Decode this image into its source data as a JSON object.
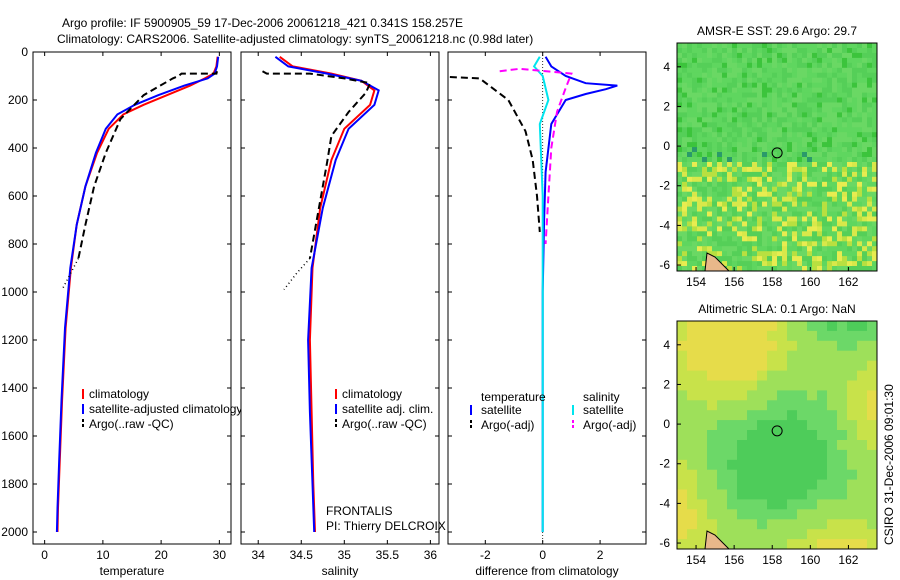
{
  "header": {
    "line1": "Argo profile: IF 5900905_59 17-Dec-2006 20061218_421 0.341S 158.257E",
    "line2": "Climatology: CARS2006. Satellite-adjusted climatology: synTS_20061218.nc (0.98d later)"
  },
  "sidebar_stamp": "CSIRO 31-Dec-2006 09:01:30",
  "colors": {
    "climatology": "#ff0000",
    "satellite": "#0000ff",
    "argo": "#000000",
    "salinity_satellite": "#00e5ee",
    "salinity_argo": "#ff00ff",
    "map_green": "#5fd65f",
    "map_yellow": "#d8e84a"
  },
  "chart_data": [
    {
      "id": "temperature",
      "type": "line",
      "xlabel": "temperature",
      "ylabel": "",
      "xlim": [
        -2,
        32
      ],
      "ylim": [
        2050,
        0
      ],
      "xticks": [
        0,
        10,
        20,
        30
      ],
      "yticks": [
        0,
        200,
        400,
        600,
        800,
        1000,
        1200,
        1400,
        1600,
        1800,
        2000
      ],
      "series": [
        {
          "name": "climatology",
          "color": "#ff0000",
          "dash": "",
          "x": [
            29.7,
            29.5,
            29.0,
            27.5,
            25.0,
            21.0,
            17.0,
            13.5,
            11.0,
            9.0,
            7.0,
            5.5,
            4.5,
            3.6,
            3.0,
            2.6,
            2.3,
            2.2
          ],
          "y": [
            20,
            60,
            90,
            110,
            140,
            180,
            220,
            260,
            320,
            420,
            560,
            720,
            900,
            1150,
            1450,
            1700,
            1900,
            2000
          ]
        },
        {
          "name": "satellite-adjusted climatology",
          "color": "#0000ff",
          "dash": "",
          "x": [
            29.8,
            29.6,
            29.2,
            28.0,
            24.0,
            19.5,
            15.5,
            12.5,
            10.5,
            8.8,
            7.0,
            5.5,
            4.4,
            3.5,
            2.9,
            2.5,
            2.2,
            2.1
          ],
          "y": [
            20,
            60,
            90,
            110,
            140,
            180,
            220,
            260,
            320,
            420,
            560,
            720,
            900,
            1150,
            1450,
            1700,
            1900,
            2000
          ]
        },
        {
          "name": "Argo(..raw -QC)",
          "color": "#000000",
          "dash": "7,4",
          "x": [
            29.6,
            29.5,
            23.5,
            23.0,
            22.0,
            17.0,
            13.0,
            10.5,
            8.5,
            7.0,
            5.8
          ],
          "y": [
            80,
            90,
            90,
            100,
            110,
            180,
            280,
            420,
            560,
            720,
            860
          ]
        },
        {
          "name": "Argo (continued)",
          "color": "#000000",
          "dash": "1,3",
          "x": [
            5.8,
            4.5,
            3.0
          ],
          "y": [
            860,
            920,
            990
          ]
        }
      ],
      "legend": [
        "climatology",
        "satellite-adjusted climatology",
        "Argo(..raw -QC)"
      ]
    },
    {
      "id": "salinity",
      "type": "line",
      "xlabel": "salinity",
      "ylabel": "",
      "xlim": [
        33.8,
        36.1
      ],
      "ylim": [
        2050,
        0
      ],
      "xticks": [
        34,
        34.5,
        35,
        35.5,
        36
      ],
      "xtick_labels": [
        "34",
        "34.5",
        "35",
        "35.5",
        "36"
      ],
      "series": [
        {
          "name": "climatology",
          "color": "#ff0000",
          "dash": "",
          "x": [
            34.25,
            34.4,
            34.85,
            35.2,
            35.35,
            35.3,
            35.0,
            34.85,
            34.72,
            34.63,
            34.6,
            34.62,
            34.64,
            34.66
          ],
          "y": [
            20,
            60,
            90,
            120,
            160,
            220,
            320,
            450,
            650,
            900,
            1200,
            1500,
            1800,
            2000
          ]
        },
        {
          "name": "satellite adj. clim.",
          "color": "#0000ff",
          "dash": "",
          "x": [
            34.2,
            34.35,
            34.8,
            35.2,
            35.4,
            35.35,
            35.05,
            34.9,
            34.75,
            34.62,
            34.58,
            34.6,
            34.63,
            34.65
          ],
          "y": [
            20,
            60,
            90,
            120,
            160,
            220,
            320,
            450,
            650,
            900,
            1200,
            1500,
            1800,
            2000
          ]
        },
        {
          "name": "Argo(..raw -QC)",
          "color": "#000000",
          "dash": "7,4",
          "x": [
            34.05,
            34.1,
            34.6,
            35.0,
            35.3,
            35.25,
            35.05,
            34.85,
            34.8,
            34.72,
            34.6
          ],
          "y": [
            80,
            90,
            90,
            110,
            130,
            170,
            250,
            350,
            460,
            620,
            860
          ]
        },
        {
          "name": "Argo (continued)",
          "color": "#000000",
          "dash": "1,3",
          "x": [
            34.6,
            34.45,
            34.3
          ],
          "y": [
            860,
            920,
            990
          ]
        }
      ],
      "legend": [
        "climatology",
        "satellite adj. clim.",
        "Argo(..raw -QC)"
      ],
      "annotation": [
        "FRONTALIS",
        "PI: Thierry DELCROIX"
      ]
    },
    {
      "id": "difference",
      "type": "line",
      "xlabel": "difference from climatology",
      "ylabel": "",
      "xlim": [
        -3.3,
        3.6
      ],
      "ylim": [
        2050,
        0
      ],
      "xticks": [
        -2,
        0,
        2
      ],
      "legend_titles": [
        "temperature",
        "salinity"
      ],
      "series": [
        {
          "name": "satellite",
          "group": "temperature",
          "color": "#0000ff",
          "dash": "",
          "x": [
            0.1,
            0.3,
            0.8,
            1.5,
            2.6,
            2.2,
            1.5,
            0.8,
            0.3,
            0.1,
            0.05,
            0.0,
            0.0,
            0.0
          ],
          "y": [
            20,
            60,
            100,
            130,
            140,
            155,
            175,
            200,
            300,
            500,
            700,
            1000,
            1500,
            2000
          ]
        },
        {
          "name": "Argo(-adj)",
          "group": "temperature",
          "color": "#000000",
          "dash": "7,4",
          "x": [
            -4.0,
            -2.2,
            -1.2,
            -0.6,
            -0.35,
            -0.2,
            -0.1
          ],
          "y": [
            100,
            110,
            200,
            330,
            450,
            600,
            750
          ]
        },
        {
          "name": "satellite",
          "group": "salinity",
          "color": "#00e5ee",
          "dash": "",
          "x": [
            -0.1,
            -0.3,
            0.0,
            0.2,
            -0.1,
            0.0,
            0.0,
            0.0,
            0.0
          ],
          "y": [
            20,
            60,
            100,
            200,
            300,
            600,
            1000,
            1500,
            2000
          ]
        },
        {
          "name": "Argo(-adj)",
          "group": "salinity",
          "color": "#ff00ff",
          "dash": "7,4",
          "x": [
            -1.5,
            -0.8,
            1.0,
            0.8,
            0.5,
            0.3,
            0.2,
            0.1
          ],
          "y": [
            80,
            70,
            90,
            150,
            250,
            400,
            600,
            800
          ]
        }
      ],
      "legend": {
        "temperature": [
          "satellite",
          "Argo(-adj)"
        ],
        "salinity": [
          "satellite",
          "Argo(-adj)"
        ]
      }
    },
    {
      "id": "sst_map",
      "type": "heatmap",
      "title": "AMSR-E SST: 29.6 Argo: 29.7",
      "xlim": [
        153,
        163.5
      ],
      "ylim": [
        -6.3,
        5.2
      ],
      "xticks": [
        154,
        156,
        158,
        160,
        162
      ],
      "yticks": [
        4,
        2,
        0,
        -2,
        -4,
        -6
      ],
      "marker": {
        "lon": 158.257,
        "lat": -0.341
      }
    },
    {
      "id": "sla_map",
      "type": "heatmap",
      "title": "Altimetric SLA: 0.1 Argo: NaN",
      "xlim": [
        153,
        163.5
      ],
      "ylim": [
        -6.3,
        5.2
      ],
      "xticks": [
        154,
        156,
        158,
        160,
        162
      ],
      "yticks": [
        4,
        2,
        0,
        -2,
        -4,
        -6
      ],
      "marker": {
        "lon": 158.257,
        "lat": -0.341
      }
    }
  ]
}
